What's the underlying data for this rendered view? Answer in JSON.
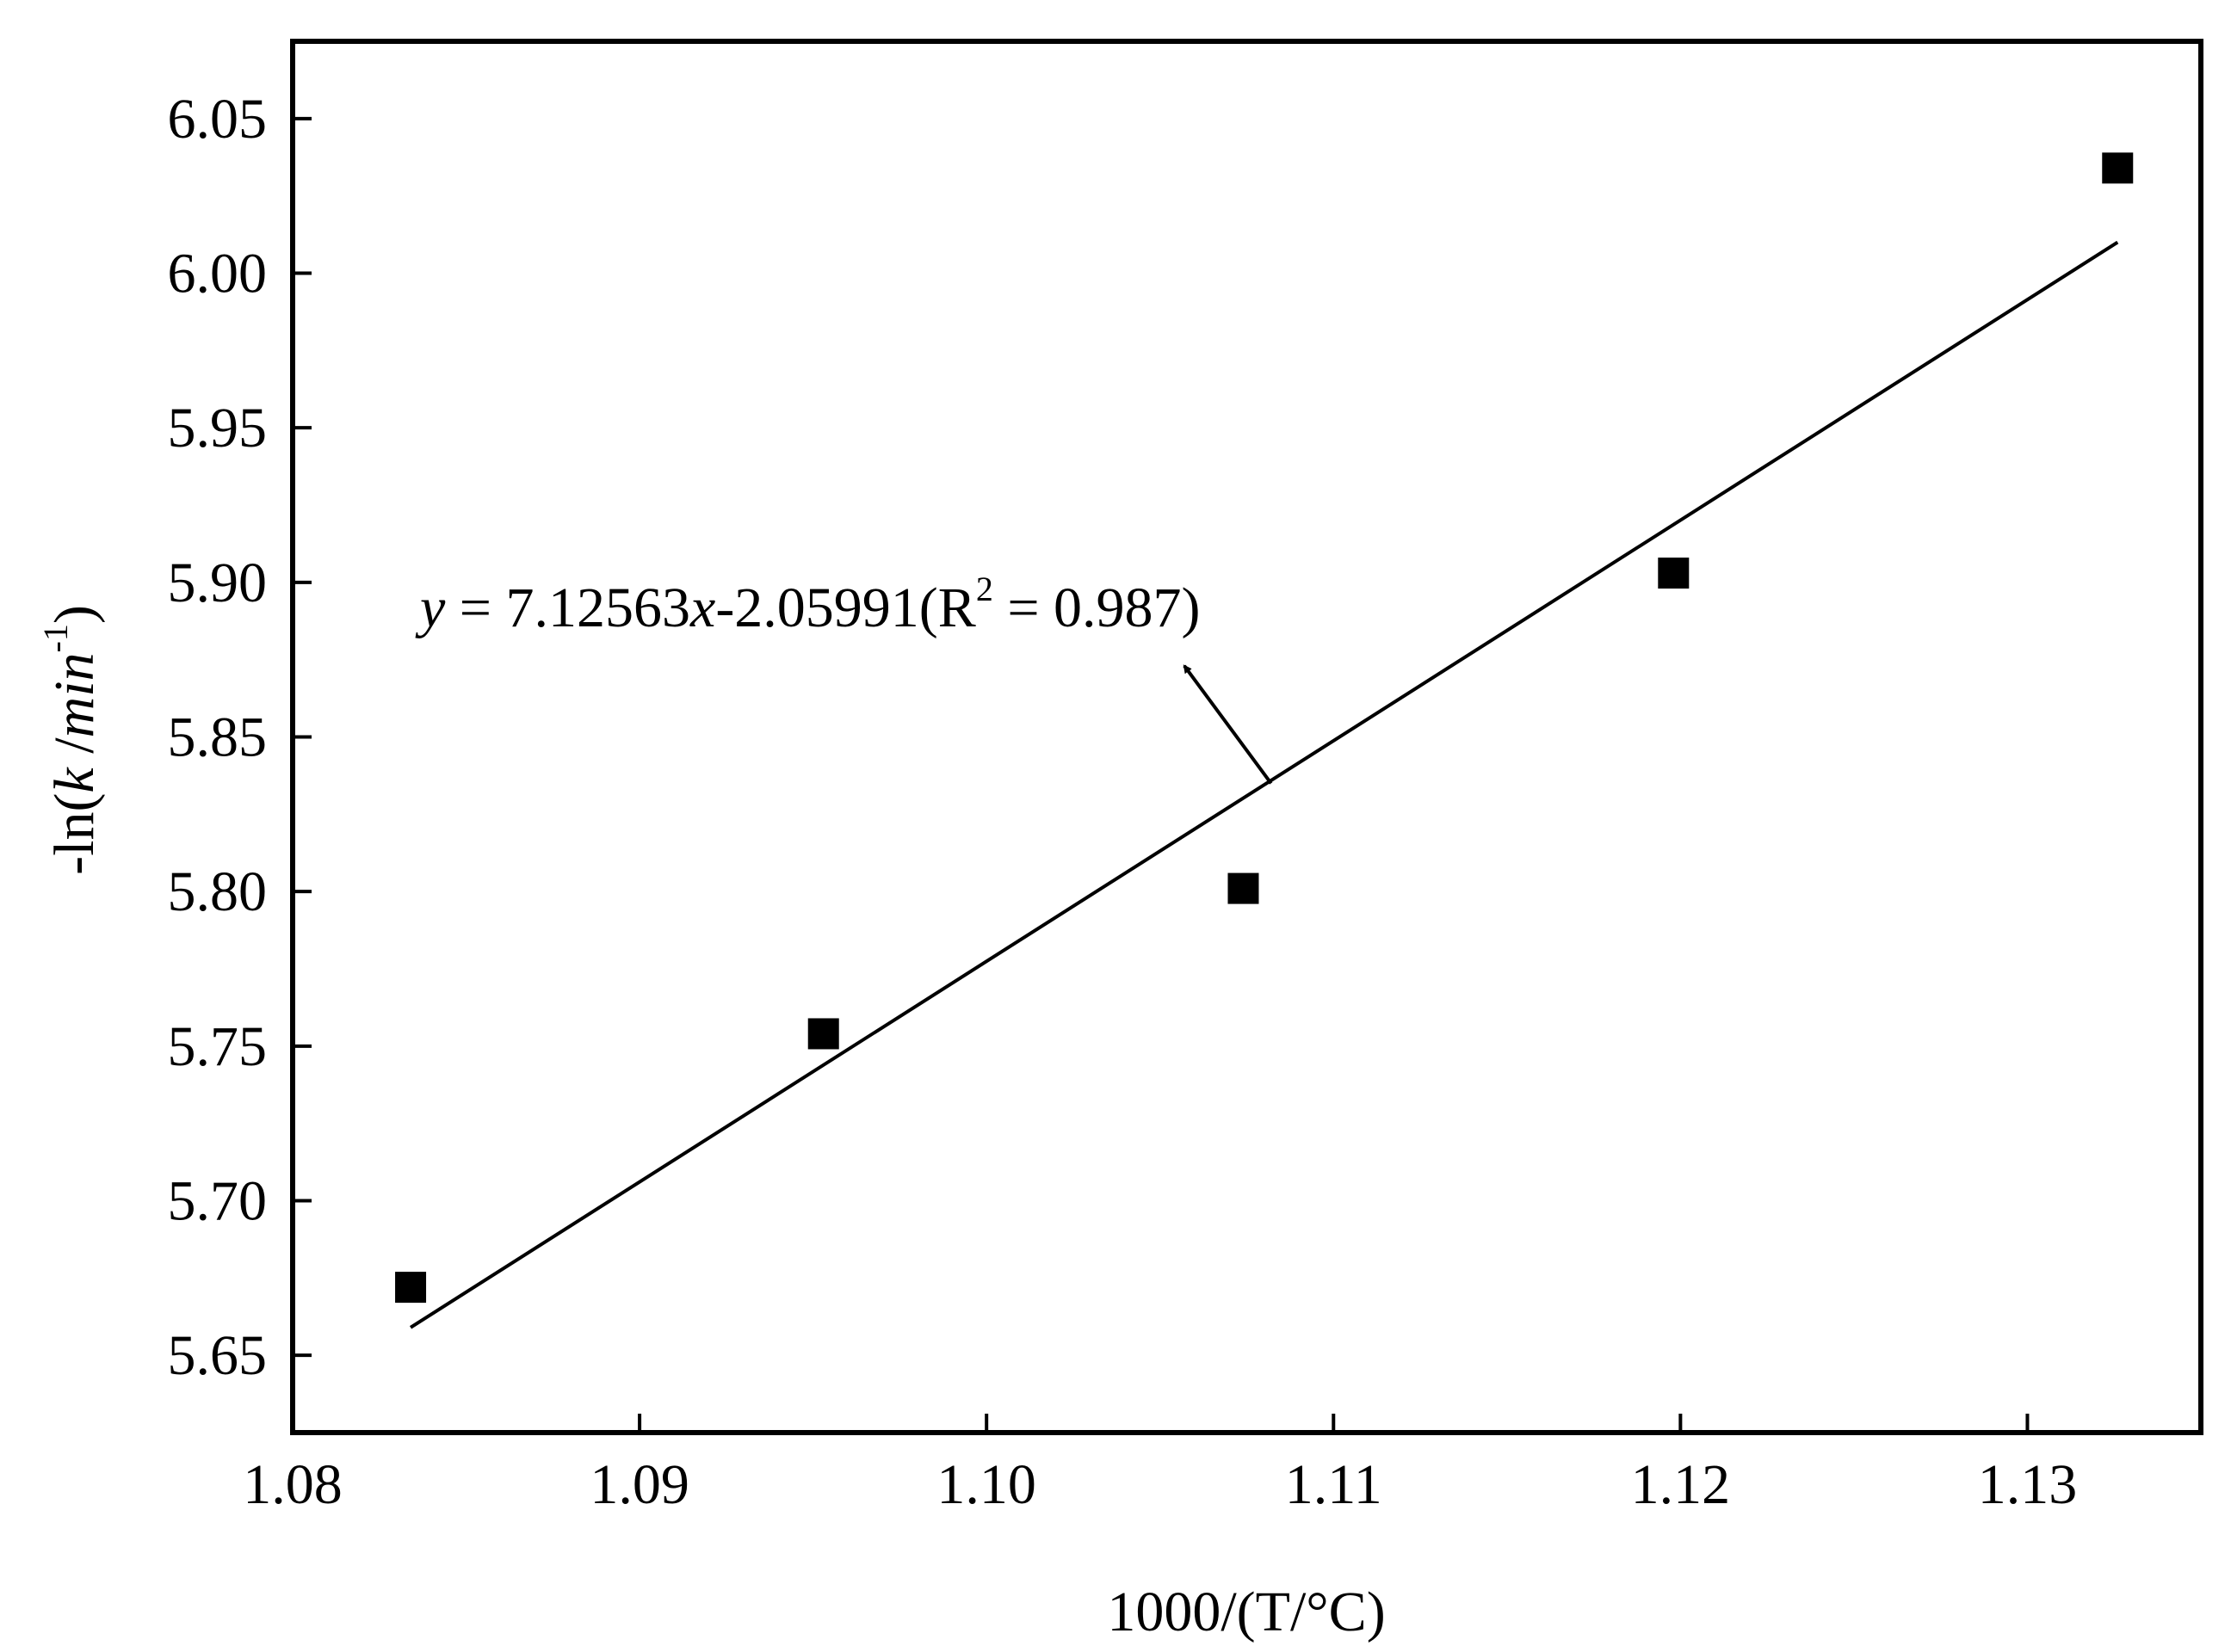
{
  "chart_data": {
    "type": "scatter",
    "title": "",
    "xlabel": "1000/(T/°C)",
    "ylabel": {
      "prefix": "-ln(",
      "italic_k": "k",
      "slash": " /",
      "italic_min": "min",
      "sup": "-1",
      "suffix": ")"
    },
    "xlim": [
      1.08,
      1.135
    ],
    "ylim": [
      5.625,
      6.075
    ],
    "xticks": [
      1.08,
      1.09,
      1.1,
      1.11,
      1.12,
      1.13
    ],
    "xtick_labels": [
      "1.08",
      "1.09",
      "1.10",
      "1.11",
      "1.12",
      "1.13"
    ],
    "yticks": [
      5.65,
      5.7,
      5.75,
      5.8,
      5.85,
      5.9,
      5.95,
      6.0,
      6.05
    ],
    "ytick_labels": [
      "5.65",
      "5.70",
      "5.75",
      "5.80",
      "5.85",
      "5.90",
      "5.95",
      "6.00",
      "6.05"
    ],
    "grid": false,
    "series": [
      {
        "marker": "square",
        "color": "#000000",
        "x": [
          1.0834,
          1.0953,
          1.1074,
          1.1198,
          1.1326
        ],
        "y": [
          5.672,
          5.754,
          5.801,
          5.903,
          6.034
        ]
      }
    ],
    "fit_line": {
      "x": [
        1.0834,
        1.1326
      ],
      "y": [
        5.659,
        6.01
      ]
    },
    "equation": {
      "y_var": "y",
      "eq_part1": " = 7.12563",
      "x_var": "x",
      "eq_part2": "-2.05991(R",
      "sup": "2",
      "eq_part3": " = 0.987)"
    },
    "annotation_arrow": {
      "from": [
        1.1082,
        5.835
      ],
      "to": [
        1.1057,
        5.873
      ]
    }
  }
}
